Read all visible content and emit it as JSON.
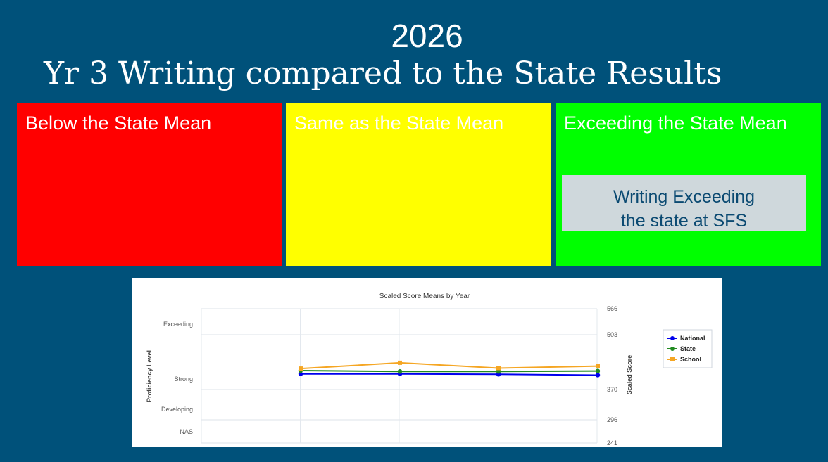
{
  "slide": {
    "year": "2026",
    "title": "Yr 3 Writing compared to the State Results"
  },
  "boxes": {
    "below": {
      "label": "Below the State Mean",
      "color": "#ff0000"
    },
    "same": {
      "label": "Same as the State Mean",
      "color": "#ffff00"
    },
    "exceed": {
      "label": "Exceeding the State Mean",
      "color": "#00ff00",
      "callout_line1": "Writing Exceeding",
      "callout_line2": "the state at SFS"
    }
  },
  "chart_data": {
    "type": "line",
    "title": "Scaled Score Means by Year",
    "ylabel_left": "Proficiency Level",
    "ylabel_right": "Scaled Score",
    "bands": [
      "Exceeding",
      "Strong",
      "Developing",
      "NAS"
    ],
    "right_ticks": [
      566,
      503,
      370,
      296,
      241
    ],
    "ylim": [
      241,
      566
    ],
    "x_count": 4,
    "series": [
      {
        "name": "National",
        "color": "#0000ee",
        "values": [
          408,
          408,
          407,
          405
        ]
      },
      {
        "name": "State",
        "color": "#228b22",
        "values": [
          416,
          414,
          414,
          415
        ]
      },
      {
        "name": "School",
        "color": "#f5a623",
        "values": [
          421,
          435,
          422,
          427
        ]
      }
    ],
    "legend_position": "right"
  }
}
